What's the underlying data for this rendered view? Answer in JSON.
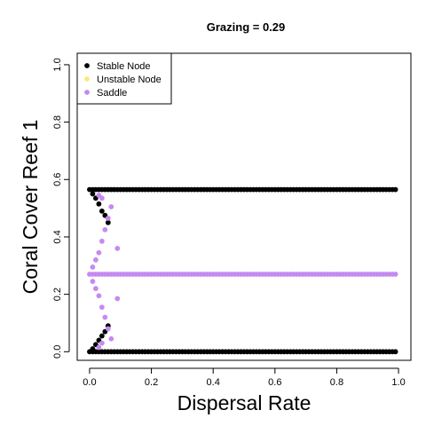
{
  "chart_data": {
    "type": "scatter",
    "title": "Grazing =  0.29",
    "xlabel": "Dispersal Rate",
    "ylabel": "Coral Cover Reef 1",
    "xlim": [
      -0.04,
      1.04
    ],
    "ylim": [
      -0.03,
      1.04
    ],
    "xticks": [
      "0.0",
      "0.2",
      "0.4",
      "0.6",
      "0.8",
      "1.0"
    ],
    "yticks": [
      "0.0",
      "0.2",
      "0.4",
      "0.6",
      "0.8",
      "1.0"
    ],
    "legend_position": "top-left",
    "series": [
      {
        "name": "Stable Node",
        "color": "#000000",
        "groups": [
          {
            "x_start": 0.0,
            "x_end": 0.99,
            "x_step": 0.01,
            "y_constant": 0.565
          },
          {
            "x_start": 0.0,
            "x_end": 0.99,
            "x_step": 0.01,
            "y_constant": 0.0
          },
          {
            "x": [
              0.01,
              0.02,
              0.03,
              0.04,
              0.05,
              0.06
            ],
            "y": [
              0.55,
              0.535,
              0.515,
              0.49,
              0.475,
              0.45
            ]
          },
          {
            "x": [
              0.01,
              0.02,
              0.03,
              0.04,
              0.05,
              0.06
            ],
            "y": [
              0.01,
              0.025,
              0.04,
              0.055,
              0.07,
              0.09
            ]
          }
        ]
      },
      {
        "name": "Unstable Node",
        "color": "#ffe680",
        "groups": []
      },
      {
        "name": "Saddle",
        "color": "#c58af0",
        "groups": [
          {
            "x_start": 0.0,
            "x_end": 0.99,
            "x_step": 0.01,
            "y_constant": 0.27
          },
          {
            "x": [
              0.01,
              0.02,
              0.03,
              0.04,
              0.05,
              0.06,
              0.07,
              0.09
            ],
            "y": [
              0.295,
              0.32,
              0.345,
              0.385,
              0.425,
              0.465,
              0.505,
              0.36
            ]
          },
          {
            "x": [
              0.01,
              0.02,
              0.03,
              0.04,
              0.05,
              0.06,
              0.07,
              0.09
            ],
            "y": [
              0.245,
              0.22,
              0.195,
              0.155,
              0.12,
              0.08,
              0.045,
              0.185
            ]
          },
          {
            "x": [
              0.03,
              0.04
            ],
            "y": [
              0.545,
              0.535
            ]
          },
          {
            "x": [
              0.03,
              0.04
            ],
            "y": [
              0.015,
              0.03
            ]
          }
        ]
      }
    ]
  }
}
